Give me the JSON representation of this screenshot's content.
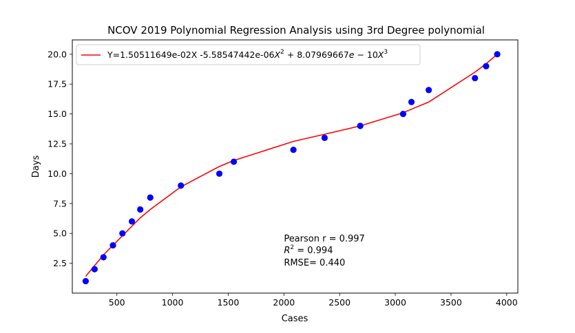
{
  "chart_data": {
    "type": "scatter",
    "title": "NCOV 2019 Polynomial Regression Analysis using 3rd Degree polynomial",
    "xlabel": "Cases",
    "ylabel": "Days",
    "xlim": [
      100,
      4100
    ],
    "ylim": [
      0.0,
      21.2
    ],
    "x_ticks": [
      500,
      1000,
      1500,
      2000,
      2500,
      3000,
      3500,
      4000
    ],
    "y_ticks": [
      2.5,
      5.0,
      7.5,
      10.0,
      12.5,
      15.0,
      17.5,
      20.0
    ],
    "x_tick_labels": [
      "500",
      "1000",
      "1500",
      "2000",
      "2500",
      "3000",
      "3500",
      "4000"
    ],
    "y_tick_labels": [
      "2.5",
      "5.0",
      "7.5",
      "10.0",
      "12.5",
      "15.0",
      "17.5",
      "20.0"
    ],
    "grid": false,
    "legend_position": "top-left",
    "series": [
      {
        "kind": "scatter",
        "color": "#0000ff",
        "x": [
          220,
          300,
          380,
          465,
          550,
          635,
          710,
          800,
          1075,
          1420,
          1550,
          2085,
          2365,
          2685,
          3070,
          3145,
          3300,
          3715,
          3815,
          3915
        ],
        "y": [
          1,
          2,
          3,
          4,
          5,
          6,
          7,
          8,
          9,
          10,
          11,
          12,
          13,
          14,
          15,
          16,
          17,
          18,
          19,
          20
        ]
      },
      {
        "kind": "line",
        "color": "#ff0000",
        "x": [
          220,
          300,
          380,
          465,
          550,
          635,
          710,
          800,
          1075,
          1420,
          1550,
          2085,
          2365,
          2685,
          3070,
          3145,
          3300,
          3715,
          3815,
          3915
        ],
        "y": [
          1.4,
          2.3,
          3.2,
          4.0,
          4.8,
          5.6,
          6.3,
          7.0,
          8.9,
          10.6,
          11.1,
          12.7,
          13.3,
          14.0,
          15.1,
          15.4,
          16.0,
          18.5,
          19.2,
          20.0
        ]
      }
    ],
    "legend": {
      "label_prefix": "Y=1.50511649e-02X -5.58547442e-06",
      "term2_var": "X",
      "term2_exp": "2",
      "term3_coef": " + 8.07969667",
      "term3_e": "e",
      "term3_mid": " − 10",
      "term3_var": "X",
      "term3_exp": "3"
    },
    "annotations": {
      "pearson": "Pearson r = 0.997",
      "r2_var": "R",
      "r2_exp": "2",
      "r2_rest": " = 0.994",
      "rmse": "RMSE= 0.440",
      "anchor_x": 2000,
      "anchor_y": 4.2
    }
  }
}
